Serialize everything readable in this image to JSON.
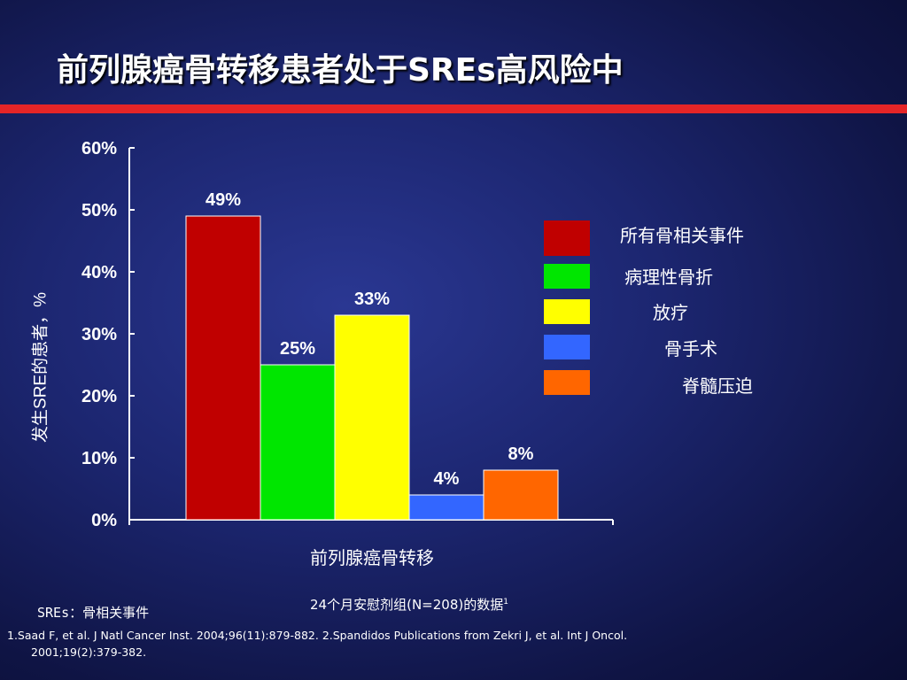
{
  "slide": {
    "title": "前列腺癌骨转移患者处于SREs高风险中",
    "caption": "24个月安慰剂组(N=208)的数据",
    "caption_sup": "1",
    "abbreviation": "SREs：骨相关事件",
    "references_line1": "1.Saad F, et al. J Natl Cancer Inst. 2004;96(11):879-882. 2.Spandidos Publications from Zekri J, et al. Int J Oncol.",
    "references_line2": "2001;19(2):379-382.",
    "colors": {
      "background": "#1c2670",
      "title_rule": "#e52527",
      "text": "#ffffff"
    }
  },
  "chart_data": {
    "type": "bar",
    "xlabel": "前列腺癌骨转移",
    "ylabel": "发生SRE的患者，%",
    "ylim": [
      0,
      60
    ],
    "yticks": [
      0,
      10,
      20,
      30,
      40,
      50,
      60
    ],
    "ytick_labels": [
      "0%",
      "10%",
      "20%",
      "30%",
      "40%",
      "50%",
      "60%"
    ],
    "grid": false,
    "legend_position": "right",
    "series": [
      {
        "name": "所有骨相关事件",
        "value": 49,
        "label": "49%",
        "color": "#c00000"
      },
      {
        "name": "病理性骨折",
        "value": 25,
        "label": "25%",
        "color": "#00e600"
      },
      {
        "name": "放疗",
        "value": 33,
        "label": "33%",
        "color": "#ffff00"
      },
      {
        "name": "骨手术",
        "value": 4,
        "label": "4%",
        "color": "#3366ff"
      },
      {
        "name": "脊髓压迫",
        "value": 8,
        "label": "8%",
        "color": "#ff6600"
      }
    ]
  }
}
